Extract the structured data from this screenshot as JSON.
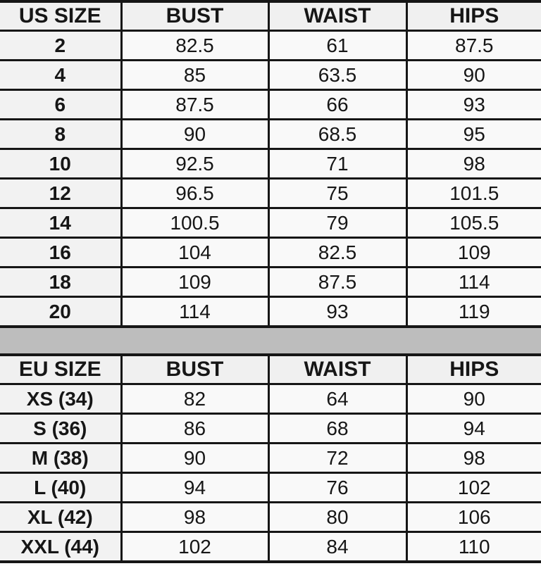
{
  "colors": {
    "border": "#161616",
    "cell_bg": "#f9f9f9",
    "header_bg": "#f0f0f0",
    "size_column_bg": "#f2f2f2",
    "divider_bg": "#bdbdbd"
  },
  "us_table": {
    "headers": [
      "US SIZE",
      "BUST",
      "WAIST",
      "HIPS"
    ],
    "rows": [
      [
        "2",
        "82.5",
        "61",
        "87.5"
      ],
      [
        "4",
        "85",
        "63.5",
        "90"
      ],
      [
        "6",
        "87.5",
        "66",
        "93"
      ],
      [
        "8",
        "90",
        "68.5",
        "95"
      ],
      [
        "10",
        "92.5",
        "71",
        "98"
      ],
      [
        "12",
        "96.5",
        "75",
        "101.5"
      ],
      [
        "14",
        "100.5",
        "79",
        "105.5"
      ],
      [
        "16",
        "104",
        "82.5",
        "109"
      ],
      [
        "18",
        "109",
        "87.5",
        "114"
      ],
      [
        "20",
        "114",
        "93",
        "119"
      ]
    ]
  },
  "eu_table": {
    "headers": [
      "EU SIZE",
      "BUST",
      "WAIST",
      "HIPS"
    ],
    "rows": [
      [
        "XS (34)",
        "82",
        "64",
        "90"
      ],
      [
        "S (36)",
        "86",
        "68",
        "94"
      ],
      [
        "M (38)",
        "90",
        "72",
        "98"
      ],
      [
        "L (40)",
        "94",
        "76",
        "102"
      ],
      [
        "XL (42)",
        "98",
        "80",
        "106"
      ],
      [
        "XXL (44)",
        "102",
        "84",
        "110"
      ]
    ]
  },
  "chart_data": [
    {
      "type": "table",
      "columns": [
        "US SIZE",
        "BUST",
        "WAIST",
        "HIPS"
      ],
      "rows": [
        [
          "2",
          82.5,
          61,
          87.5
        ],
        [
          "4",
          85,
          63.5,
          90
        ],
        [
          "6",
          87.5,
          66,
          93
        ],
        [
          "8",
          90,
          68.5,
          95
        ],
        [
          "10",
          92.5,
          71,
          98
        ],
        [
          "12",
          96.5,
          75,
          101.5
        ],
        [
          "14",
          100.5,
          79,
          105.5
        ],
        [
          "16",
          104,
          82.5,
          109
        ],
        [
          "18",
          109,
          87.5,
          114
        ],
        [
          "20",
          114,
          93,
          119
        ]
      ]
    },
    {
      "type": "table",
      "columns": [
        "EU SIZE",
        "BUST",
        "WAIST",
        "HIPS"
      ],
      "rows": [
        [
          "XS (34)",
          82,
          64,
          90
        ],
        [
          "S (36)",
          86,
          68,
          94
        ],
        [
          "M (38)",
          90,
          72,
          98
        ],
        [
          "L (40)",
          94,
          76,
          102
        ],
        [
          "XL (42)",
          98,
          80,
          106
        ],
        [
          "XXL (44)",
          102,
          84,
          110
        ]
      ]
    }
  ]
}
